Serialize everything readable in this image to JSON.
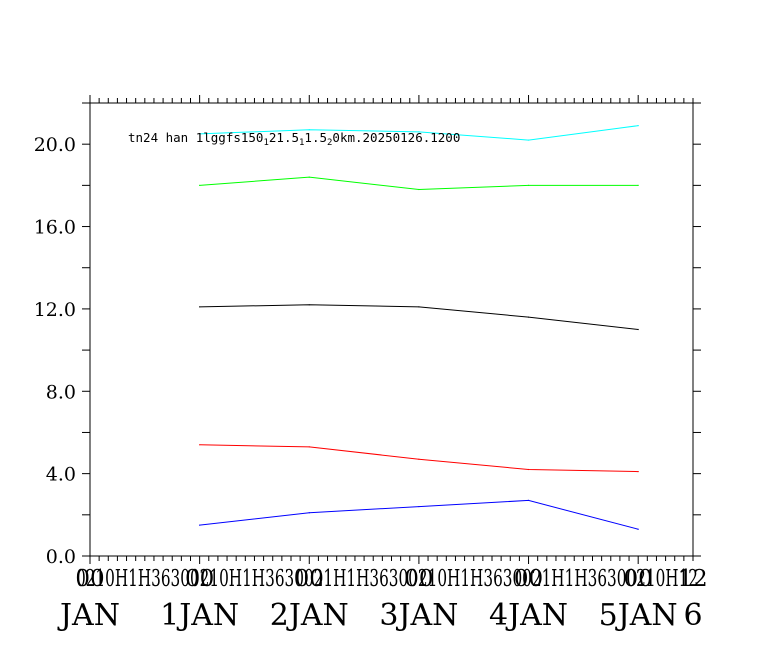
{
  "chart_data": {
    "type": "line",
    "title": "tn24 han 1lggfs150 21.5 1.5 0km.20250126.1200",
    "title_parts": [
      "tn24 han 1lggfs150",
      "1",
      "21.5",
      "1",
      "1.5",
      "2",
      "0km.20250126.1200"
    ],
    "xlabel": "",
    "ylabel": "",
    "ylim": [
      0,
      22
    ],
    "xlim": [
      0,
      5.5
    ],
    "y_ticks": [
      "0.0",
      "4.0",
      "8.0",
      "12.0",
      "16.0",
      "20.0"
    ],
    "x_ticks": [
      {
        "x": 0,
        "top": "00",
        "bottom": "JAN"
      },
      {
        "x": 1,
        "top": "00",
        "bottom": "1JAN"
      },
      {
        "x": 2,
        "top": "00",
        "bottom": "2JAN"
      },
      {
        "x": 3,
        "top": "00",
        "bottom": "3JAN"
      },
      {
        "x": 4,
        "top": "00",
        "bottom": "4JAN"
      },
      {
        "x": 5,
        "top": "00",
        "bottom": "5JAN"
      },
      {
        "x": 5.5,
        "top": "12",
        "bottom": "6"
      }
    ],
    "x_tick_overlap_text": "0210H1H36300210H1H3630021H1H36300210H1H3630021H1H36300210H12",
    "x": [
      1,
      2,
      3,
      4,
      5
    ],
    "series": [
      {
        "color": "#00ffff",
        "values": [
          20.5,
          20.7,
          20.6,
          20.2,
          20.9
        ]
      },
      {
        "color": "#00ff00",
        "values": [
          18.0,
          18.4,
          17.8,
          18.0,
          18.0
        ]
      },
      {
        "color": "#000000",
        "values": [
          12.1,
          12.2,
          12.1,
          11.6,
          11.0
        ]
      },
      {
        "color": "#ff0000",
        "values": [
          5.4,
          5.3,
          4.7,
          4.2,
          4.1
        ]
      },
      {
        "color": "#0000ff",
        "values": [
          1.5,
          2.1,
          2.4,
          2.7,
          1.3
        ]
      }
    ],
    "grid": false,
    "legend": "none"
  }
}
